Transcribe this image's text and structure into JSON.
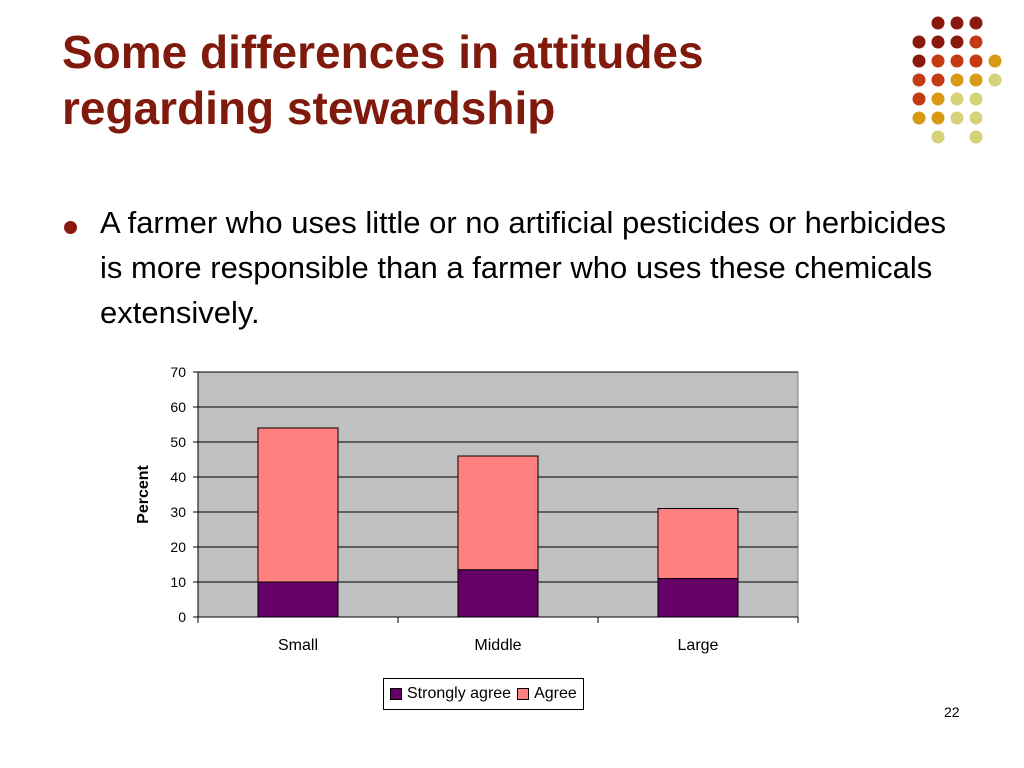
{
  "slide": {
    "title": "Some differences in attitudes regarding stewardship",
    "bullet": "A farmer who uses little or no artificial pesticides or herbicides is more responsible than a farmer who uses these chemicals extensively.",
    "page_number": "22"
  },
  "decoration": {
    "dot_colors": [
      "#8b1a0e",
      "#c43a12",
      "#d89a14",
      "#d6d27a"
    ]
  },
  "chart_data": {
    "type": "bar",
    "stacked": true,
    "categories": [
      "Small",
      "Middle",
      "Large"
    ],
    "series": [
      {
        "name": "Strongly agree",
        "values": [
          10,
          13.5,
          11
        ],
        "color": "#660066"
      },
      {
        "name": "Agree",
        "values": [
          44,
          32.5,
          20
        ],
        "color": "#ff8080"
      }
    ],
    "ylabel": "Percent",
    "xlabel": "",
    "ylim": [
      0,
      70
    ],
    "yticks": [
      0,
      10,
      20,
      30,
      40,
      50,
      60,
      70
    ],
    "grid": true,
    "plot_background": "#c0c0c0",
    "legend_position": "bottom"
  }
}
